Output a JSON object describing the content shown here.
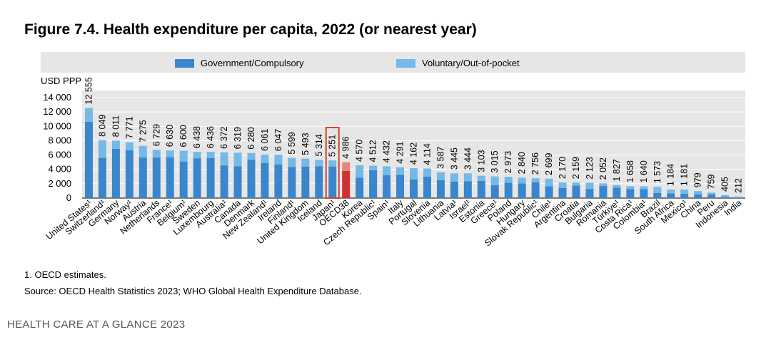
{
  "title": "Figure 7.4. Health expenditure per capita, 2022 (or nearest year)",
  "footnote": "1. OECD estimates.",
  "source": "Source: OECD Health Statistics 2023; WHO Global Health Expenditure Database.",
  "footer": "HEALTH CARE AT A GLANCE 2023",
  "legend": [
    {
      "label": "Government/Compulsory",
      "color": "#3a86cc"
    },
    {
      "label": "Voluntary/Out-of-pocket",
      "color": "#74b9e8"
    }
  ],
  "chart_data": {
    "type": "bar",
    "stacked": true,
    "ylabel": "USD PPP",
    "ylim": [
      0,
      14000
    ],
    "yticks": [
      "0",
      "2 000",
      "4 000",
      "6 000",
      "8 000",
      "10 000",
      "12 000",
      "14 000"
    ],
    "grid": true,
    "legend_position": "top",
    "categories": [
      "United States¹",
      "Switzerland¹",
      "Germany",
      "Norway¹",
      "Austria",
      "Netherlands",
      "France¹",
      "Belgium¹",
      "Sweden",
      "Luxembourg",
      "Australia¹",
      "Canada",
      "Denmark",
      "New Zealand¹",
      "Ireland",
      "Finland¹",
      "United Kingdom",
      "Iceland",
      "Japan¹",
      "OECD38",
      "Korea",
      "Czech Republic¹",
      "Spain¹",
      "Italy",
      "Portugal",
      "Slovenia",
      "Lithuania",
      "Latvia¹",
      "Israel¹",
      "Estonia",
      "Greece¹",
      "Poland",
      "Hungary",
      "Slovak Republic¹",
      "Chile¹",
      "Argentina",
      "Croatia",
      "Bulgaria",
      "Romania",
      "Türkiye¹",
      "Costa Rica¹",
      "Colombia¹",
      "Brazil",
      "South Africa",
      "Mexico¹",
      "China",
      "Peru",
      "Indonesia",
      "India"
    ],
    "total_labels": [
      "12 555",
      "8 049",
      "8 011",
      "7 771",
      "7 275",
      "6 729",
      "6 630",
      "6 600",
      "6 438",
      "6 436",
      "6 372",
      "6 319",
      "6 280",
      "6 061",
      "6 047",
      "5 599",
      "5 493",
      "5 314",
      "5 251",
      "4 986",
      "4 570",
      "4 512",
      "4 432",
      "4 291",
      "4 162",
      "4 114",
      "3 587",
      "3 445",
      "3 444",
      "3 103",
      "3 015",
      "2 973",
      "2 840",
      "2 756",
      "2 699",
      "2 170",
      "2 159",
      "2 123",
      "2 052",
      "1 827",
      "1 658",
      "1 640",
      "1 573",
      "1 184",
      "1 181",
      "979",
      "759",
      "405",
      "212"
    ],
    "highlight": {
      "OECD38": "#cc3333",
      "Japan¹": "#cc3333"
    },
    "series": [
      {
        "name": "Government/Compulsory",
        "color": "#3a86cc",
        "values": [
          10650,
          5600,
          6850,
          6650,
          5650,
          5650,
          5700,
          5100,
          5550,
          5560,
          4550,
          4450,
          5350,
          4900,
          4700,
          4350,
          4400,
          4450,
          4400,
          3800,
          2850,
          3900,
          3200,
          3250,
          2600,
          3000,
          2500,
          2300,
          2350,
          2400,
          1800,
          2150,
          2050,
          2200,
          1650,
          1400,
          1750,
          1280,
          1680,
          1450,
          1250,
          1250,
          700,
          660,
          590,
          530,
          500,
          180,
          70
        ]
      },
      {
        "name": "Voluntary/Out-of-pocket",
        "color": "#74b9e8",
        "values": [
          1905,
          2449,
          1161,
          1121,
          1625,
          1079,
          930,
          1500,
          888,
          876,
          1822,
          1869,
          930,
          1161,
          1347,
          1249,
          1093,
          864,
          851,
          1186,
          1720,
          612,
          1232,
          1041,
          1562,
          1114,
          1087,
          1145,
          1094,
          703,
          1215,
          823,
          790,
          556,
          1049,
          770,
          409,
          843,
          372,
          377,
          408,
          390,
          873,
          524,
          591,
          449,
          259,
          225,
          142
        ]
      }
    ]
  }
}
